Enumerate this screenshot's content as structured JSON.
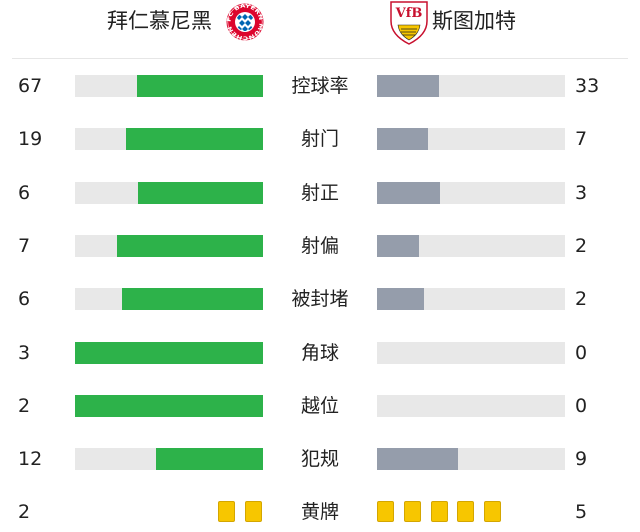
{
  "header": {
    "home_team": "拜仁慕尼黑",
    "away_team": "斯图加特",
    "home_logo_text": "FC BAYERN MÜNCHEN",
    "away_logo_text": "VfB"
  },
  "colors": {
    "home_fill": "#2db24a",
    "away_fill": "#959dab",
    "track": "#e8e8e8",
    "card_yellow": "#f7c600"
  },
  "stats": [
    {
      "label": "控球率",
      "home": "67",
      "away": "33"
    },
    {
      "label": "射门",
      "home": "19",
      "away": "7"
    },
    {
      "label": "射正",
      "home": "6",
      "away": "3"
    },
    {
      "label": "射偏",
      "home": "7",
      "away": "2"
    },
    {
      "label": "被封堵",
      "home": "6",
      "away": "2"
    },
    {
      "label": "角球",
      "home": "3",
      "away": "0"
    },
    {
      "label": "越位",
      "home": "2",
      "away": "0"
    },
    {
      "label": "犯规",
      "home": "12",
      "away": "9"
    }
  ],
  "cards": {
    "label": "黄牌",
    "home": "2",
    "away": "5",
    "icon": "yellow-card-icon"
  }
}
